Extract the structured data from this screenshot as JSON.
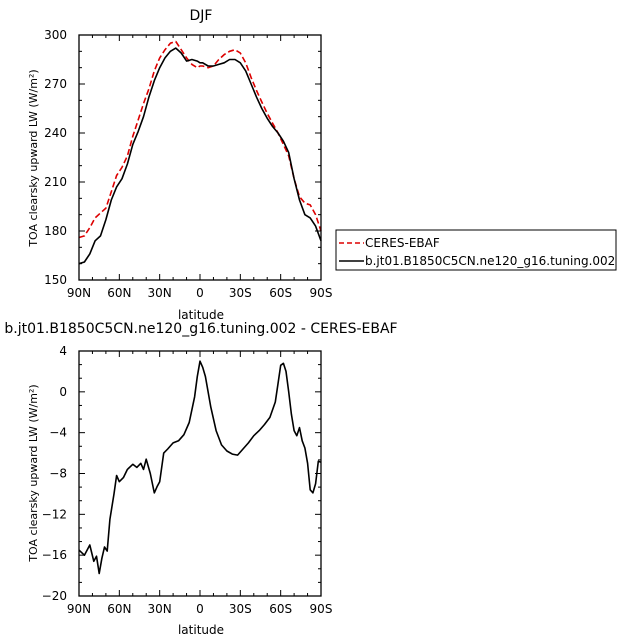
{
  "chart_data": [
    {
      "type": "line",
      "title": "DJF",
      "xlabel": "latitude",
      "ylabel": "TOA clearsky upward LW (W/m²)",
      "x_ticks": [
        {
          "value": 90,
          "label": "90N"
        },
        {
          "value": 60,
          "label": "60N"
        },
        {
          "value": 30,
          "label": "30N"
        },
        {
          "value": 0,
          "label": "0"
        },
        {
          "value": -30,
          "label": "30S"
        },
        {
          "value": -60,
          "label": "60S"
        },
        {
          "value": -90,
          "label": "90S"
        }
      ],
      "xlim": [
        90,
        -90
      ],
      "ylim": [
        150,
        300
      ],
      "y_ticks": [
        150,
        180,
        210,
        240,
        270,
        300
      ],
      "legend_position": "right",
      "series": [
        {
          "name": "CERES-EBAF",
          "color": "#dd0000",
          "dash": "dashed",
          "x": [
            90,
            86,
            82,
            78,
            74,
            70,
            66,
            62,
            58,
            54,
            50,
            46,
            42,
            38,
            34,
            30,
            26,
            22,
            18,
            14,
            10,
            6,
            2,
            0,
            -2,
            -6,
            -10,
            -14,
            -18,
            -22,
            -26,
            -30,
            -34,
            -38,
            -42,
            -46,
            -50,
            -54,
            -58,
            -62,
            -66,
            -70,
            -74,
            -78,
            -82,
            -86,
            -90
          ],
          "y": [
            176,
            177,
            182,
            188,
            191,
            194,
            204,
            214,
            219,
            226,
            238,
            248,
            258,
            267,
            278,
            286,
            291,
            295,
            296,
            291,
            286,
            282,
            280,
            281,
            281,
            280,
            281,
            285,
            288,
            290,
            291,
            289,
            283,
            274,
            266,
            259,
            252,
            246,
            240,
            233,
            226,
            212,
            201,
            197,
            196,
            190,
            180
          ]
        },
        {
          "name": "b.jt01.B1850C5CN.ne120_g16.tuning.002",
          "color": "#000000",
          "dash": "solid",
          "x": [
            90,
            86,
            82,
            78,
            74,
            70,
            66,
            62,
            58,
            54,
            50,
            46,
            42,
            38,
            34,
            30,
            26,
            22,
            18,
            14,
            10,
            6,
            2,
            0,
            -2,
            -6,
            -10,
            -14,
            -18,
            -22,
            -26,
            -30,
            -34,
            -38,
            -42,
            -46,
            -50,
            -54,
            -58,
            -62,
            -66,
            -70,
            -74,
            -78,
            -82,
            -86,
            -90
          ],
          "y": [
            160,
            161,
            166,
            174,
            177,
            187,
            199,
            207,
            212,
            221,
            233,
            241,
            250,
            262,
            272,
            280,
            286,
            290,
            292,
            289,
            284,
            285,
            284,
            283,
            283,
            281,
            281,
            282,
            283,
            285,
            285,
            283,
            278,
            270,
            262,
            255,
            249,
            244,
            240,
            235,
            228,
            212,
            199,
            190,
            188,
            183,
            174
          ]
        }
      ]
    },
    {
      "type": "line",
      "title": "b.jt01.B1850C5CN.ne120_g16.tuning.002 - CERES-EBAF",
      "xlabel": "latitude",
      "ylabel": "TOA clearsky upward LW (W/m²)",
      "xlim": [
        90,
        -90
      ],
      "ylim": [
        -20,
        4
      ],
      "y_ticks": [
        -20,
        -16,
        -12,
        -8,
        -4,
        0,
        4
      ],
      "series": [
        {
          "name": "",
          "color": "#000000",
          "dash": "solid",
          "x": [
            90,
            86,
            82,
            79,
            77,
            75,
            73,
            71,
            69,
            67,
            64,
            62,
            60,
            57,
            54,
            50,
            47,
            44,
            42,
            40,
            37,
            34,
            32,
            30,
            27,
            24,
            20,
            16,
            12,
            8,
            4,
            2,
            0,
            -2,
            -4,
            -8,
            -12,
            -16,
            -20,
            -24,
            -28,
            -32,
            -36,
            -40,
            -44,
            -48,
            -52,
            -56,
            -58,
            -60,
            -62,
            -64,
            -66,
            -68,
            -70,
            -72,
            -74,
            -76,
            -78,
            -80,
            -82,
            -84,
            -86,
            -88,
            -90
          ],
          "y": [
            -15.5,
            -16,
            -15,
            -16.6,
            -16.1,
            -17.8,
            -16.3,
            -15.2,
            -15.6,
            -12.5,
            -10,
            -8.2,
            -8.8,
            -8.4,
            -7.6,
            -7.1,
            -7.4,
            -7,
            -7.6,
            -6.6,
            -8,
            -9.9,
            -9.3,
            -8.8,
            -6,
            -5.6,
            -5,
            -4.8,
            -4.2,
            -3,
            -0.5,
            1.5,
            3,
            2.4,
            1.5,
            -1.5,
            -3.8,
            -5.2,
            -5.8,
            -6.1,
            -6.2,
            -5.6,
            -5,
            -4.3,
            -3.8,
            -3.2,
            -2.5,
            -1,
            0.8,
            2.6,
            2.8,
            2,
            0,
            -2.2,
            -3.8,
            -4.3,
            -3.5,
            -4.8,
            -5.5,
            -7,
            -9.6,
            -9.9,
            -9,
            -6.8,
            -6.9
          ]
        }
      ]
    }
  ]
}
